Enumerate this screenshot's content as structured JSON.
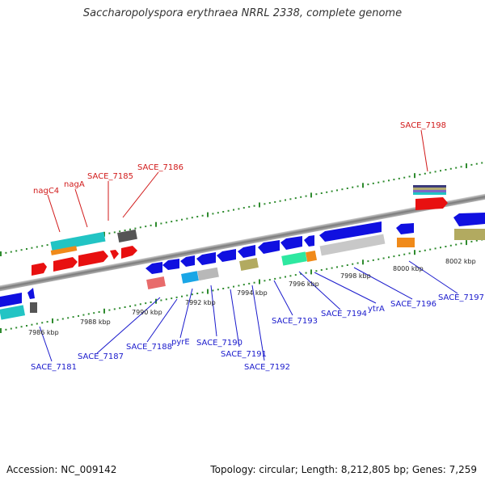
{
  "title": "Saccharopolyspora erythraea NRRL 2338, complete genome",
  "footer": {
    "accession": "Accession: NC_009142",
    "stats": "Topology: circular; Length: 8,212,805 bp; Genes: 7,259"
  },
  "colors": {
    "backbone": "#8c8c8c",
    "forward_ticks": "#2e8b2e",
    "forward_label": "#d11a1a",
    "reverse_label": "#1a1acc"
  },
  "scale_labels": [
    "7986 kbp",
    "7988 kbp",
    "7990 kbp",
    "7992 kbp",
    "7994 kbp",
    "7996 kbp",
    "7998 kbp",
    "8000 kbp",
    "8002 kbp"
  ],
  "forward_gene_labels": [
    "nagC4",
    "nagA",
    "SACE_7185",
    "SACE_7186",
    "SACE_7198"
  ],
  "reverse_gene_labels": [
    "SACE_7181",
    "SACE_7187",
    "SACE_7188",
    "pyrE",
    "SACE_7190",
    "SACE_7191",
    "SACE_7192",
    "SACE_7193",
    "SACE_7194",
    "ytrA",
    "SACE_7196",
    "SACE_7197"
  ]
}
